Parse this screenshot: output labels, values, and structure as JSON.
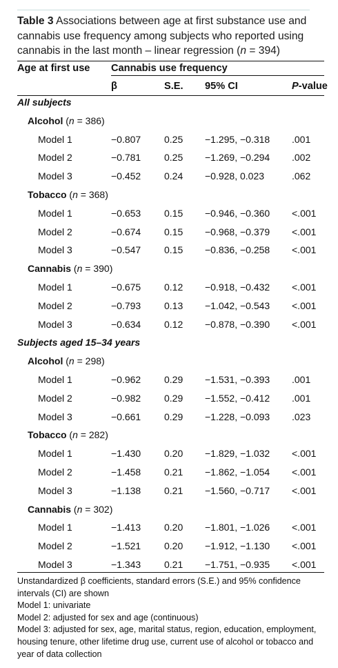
{
  "caption": {
    "label": "Table 3",
    "text_before_n": "Associations between age at first substance use and cannabis use frequency among subjects who reported using cannabis in the last month – linear regression (",
    "n_symbol": "n",
    "text_after_n": " = 394)"
  },
  "columns": {
    "age_at_first_use": "Age at first use",
    "cannabis_use_frequency": "Cannabis use frequency",
    "beta": "β",
    "se": "S.E.",
    "ci": "95% CI",
    "p_italic": "P",
    "p_rest": "-value"
  },
  "sections": [
    {
      "title": "All subjects",
      "groups": [
        {
          "name": "Alcohol",
          "n_text": " (n = 386)",
          "rows": [
            {
              "label": "Model 1",
              "beta": "−0.807",
              "se": "0.25",
              "ci": "−1.295, −0.318",
              "p": ".001"
            },
            {
              "label": "Model 2",
              "beta": "−0.781",
              "se": "0.25",
              "ci": "−1.269, −0.294",
              "p": ".002"
            },
            {
              "label": "Model 3",
              "beta": "−0.452",
              "se": "0.24",
              "ci": "−0.928, 0.023",
              "p": ".062"
            }
          ]
        },
        {
          "name": "Tobacco",
          "n_text": " (n = 368)",
          "rows": [
            {
              "label": "Model 1",
              "beta": "−0.653",
              "se": "0.15",
              "ci": "−0.946, −0.360",
              "p": "<.001"
            },
            {
              "label": "Model 2",
              "beta": "−0.674",
              "se": "0.15",
              "ci": "−0.968, −0.379",
              "p": "<.001"
            },
            {
              "label": "Model 3",
              "beta": "−0.547",
              "se": "0.15",
              "ci": "−0.836, −0.258",
              "p": "<.001"
            }
          ]
        },
        {
          "name": "Cannabis",
          "n_text": " (n = 390)",
          "rows": [
            {
              "label": "Model 1",
              "beta": "−0.675",
              "se": "0.12",
              "ci": "−0.918, −0.432",
              "p": "<.001"
            },
            {
              "label": "Model 2",
              "beta": "−0.793",
              "se": "0.13",
              "ci": "−1.042, −0.543",
              "p": "<.001"
            },
            {
              "label": "Model 3",
              "beta": "−0.634",
              "se": "0.12",
              "ci": "−0.878, −0.390",
              "p": "<.001"
            }
          ]
        }
      ]
    },
    {
      "title": "Subjects aged 15–34 years",
      "groups": [
        {
          "name": "Alcohol",
          "n_text": " (n = 298)",
          "rows": [
            {
              "label": "Model 1",
              "beta": "−0.962",
              "se": "0.29",
              "ci": "−1.531, −0.393",
              "p": ".001"
            },
            {
              "label": "Model 2",
              "beta": "−0.982",
              "se": "0.29",
              "ci": "−1.552, −0.412",
              "p": ".001"
            },
            {
              "label": "Model 3",
              "beta": "−0.661",
              "se": "0.29",
              "ci": "−1.228, −0.093",
              "p": ".023"
            }
          ]
        },
        {
          "name": "Tobacco",
          "n_text": " (n = 282)",
          "rows": [
            {
              "label": "Model 1",
              "beta": "−1.430",
              "se": "0.20",
              "ci": "−1.829, −1.032",
              "p": "<.001"
            },
            {
              "label": "Model 2",
              "beta": "−1.458",
              "se": "0.21",
              "ci": "−1.862, −1.054",
              "p": "<.001"
            },
            {
              "label": "Model 3",
              "beta": "−1.138",
              "se": "0.21",
              "ci": "−1.560, −0.717",
              "p": "<.001"
            }
          ]
        },
        {
          "name": "Cannabis",
          "n_text": " (n = 302)",
          "rows": [
            {
              "label": "Model 1",
              "beta": "−1.413",
              "se": "0.20",
              "ci": "−1.801, −1.026",
              "p": "<.001"
            },
            {
              "label": "Model 2",
              "beta": "−1.521",
              "se": "0.20",
              "ci": "−1.912, −1.130",
              "p": "<.001"
            },
            {
              "label": "Model 3",
              "beta": "−1.343",
              "se": "0.21",
              "ci": "−1.751, −0.935",
              "p": "<.001"
            }
          ]
        }
      ]
    }
  ],
  "footnotes": [
    "Unstandardized β coefficients, standard errors (S.E.) and 95% confidence intervals (CI) are shown",
    "Model 1: univariate",
    "Model 2: adjusted for sex and age (continuous)",
    "Model 3: adjusted for sex, age, marital status, region, education, employment, housing tenure, other lifetime drug use, current use of alcohol or tobacco and year of data collection"
  ]
}
